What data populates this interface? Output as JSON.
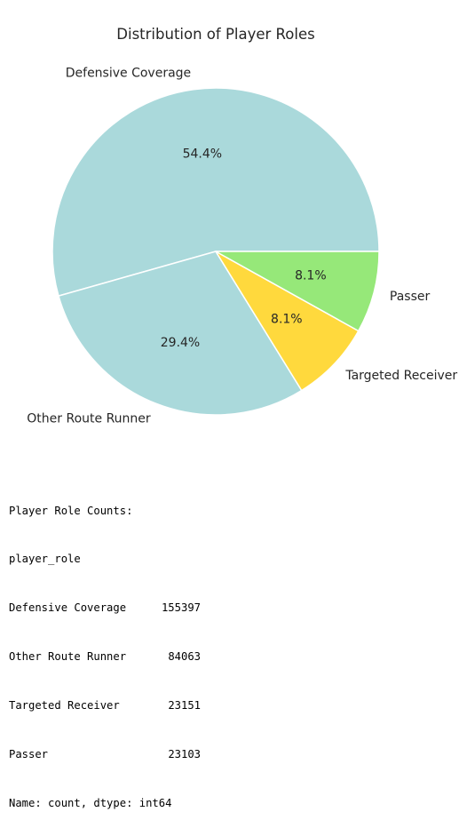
{
  "chart_data": {
    "type": "pie",
    "title": "Distribution of Player Roles",
    "slices": [
      {
        "label": "Defensive Coverage",
        "value": 155397,
        "pct_label": "54.4%",
        "color": "#aad9db"
      },
      {
        "label": "Other Route Runner",
        "value": 84063,
        "pct_label": "29.4%",
        "color": "#aad9db"
      },
      {
        "label": "Targeted Receiver",
        "value": 23151,
        "pct_label": "8.1%",
        "color": "#ffd93d"
      },
      {
        "label": "Passer",
        "value": 23103,
        "pct_label": "8.1%",
        "color": "#96e879"
      }
    ],
    "start_angle_deg": 0,
    "direction": "counterclockwise",
    "edge_color": "#ffffff"
  },
  "console": {
    "header": "Player Role Counts:",
    "index_name": "player_role",
    "rows": [
      {
        "key": "Defensive Coverage",
        "value": "155397"
      },
      {
        "key": "Other Route Runner",
        "value": "84063"
      },
      {
        "key": "Targeted Receiver",
        "value": "23151"
      },
      {
        "key": "Passer",
        "value": "23103"
      }
    ],
    "footer": "Name: count, dtype: int64"
  }
}
